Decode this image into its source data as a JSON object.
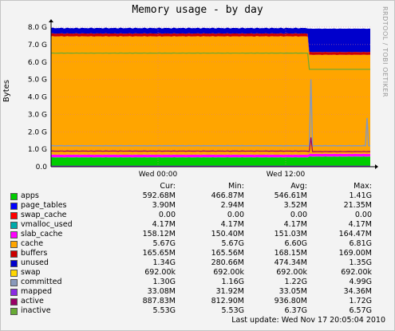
{
  "chart_data": {
    "type": "area",
    "title": "Memory usage - by day",
    "ylabel": "Bytes",
    "xlabel": "",
    "y_ticks": [
      "0.0",
      "1.0 G",
      "2.0 G",
      "3.0 G",
      "4.0 G",
      "5.0 G",
      "6.0 G",
      "7.0 G",
      "8.0 G"
    ],
    "ylim": [
      0,
      8
    ],
    "y_unit": "G",
    "x_ticks": [
      "Wed 00:00",
      "Wed 12:00"
    ],
    "grid": true,
    "stacked": true,
    "side_label": "RRDTOOL / TOBI OETIKER",
    "columns": [
      "Cur:",
      "Min:",
      "Avg:",
      "Max:"
    ],
    "series": [
      {
        "name": "apps",
        "color": "#00cc00",
        "cur": "592.68M",
        "min": "466.87M",
        "avg": "546.61M",
        "max": "1.41G"
      },
      {
        "name": "page_tables",
        "color": "#0000ff",
        "cur": "3.90M",
        "min": "2.94M",
        "avg": "3.52M",
        "max": "21.35M"
      },
      {
        "name": "swap_cache",
        "color": "#ff0000",
        "cur": "0.00",
        "min": "0.00",
        "avg": "0.00",
        "max": "0.00"
      },
      {
        "name": "vmalloc_used",
        "color": "#00aaaa",
        "cur": "4.17M",
        "min": "4.17M",
        "avg": "4.17M",
        "max": "4.17M"
      },
      {
        "name": "slab_cache",
        "color": "#ff00ff",
        "cur": "158.12M",
        "min": "150.40M",
        "avg": "151.03M",
        "max": "164.47M"
      },
      {
        "name": "cache",
        "color": "#ffa500",
        "cur": "5.67G",
        "min": "5.67G",
        "avg": "6.60G",
        "max": "6.81G"
      },
      {
        "name": "buffers",
        "color": "#cc0000",
        "cur": "165.65M",
        "min": "165.56M",
        "avg": "168.15M",
        "max": "169.00M"
      },
      {
        "name": "unused",
        "color": "#0000cc",
        "cur": "1.34G",
        "min": "280.66M",
        "avg": "474.34M",
        "max": "1.35G"
      },
      {
        "name": "swap",
        "color": "#ffd700",
        "cur": "692.00k",
        "min": "692.00k",
        "avg": "692.00k",
        "max": "692.00k"
      },
      {
        "name": "committed",
        "color": "#8899bb",
        "cur": "1.30G",
        "min": "1.16G",
        "avg": "1.22G",
        "max": "4.99G"
      },
      {
        "name": "mapped",
        "color": "#8a2be2",
        "cur": "33.08M",
        "min": "31.92M",
        "avg": "33.05M",
        "max": "34.36M"
      },
      {
        "name": "active",
        "color": "#990066",
        "cur": "887.83M",
        "min": "812.90M",
        "avg": "936.80M",
        "max": "1.72G"
      },
      {
        "name": "inactive",
        "color": "#66aa33",
        "cur": "5.53G",
        "min": "5.53G",
        "avg": "6.37G",
        "max": "6.57G"
      }
    ]
  },
  "last_update": "Last update: Wed Nov 17 20:05:04 2010"
}
